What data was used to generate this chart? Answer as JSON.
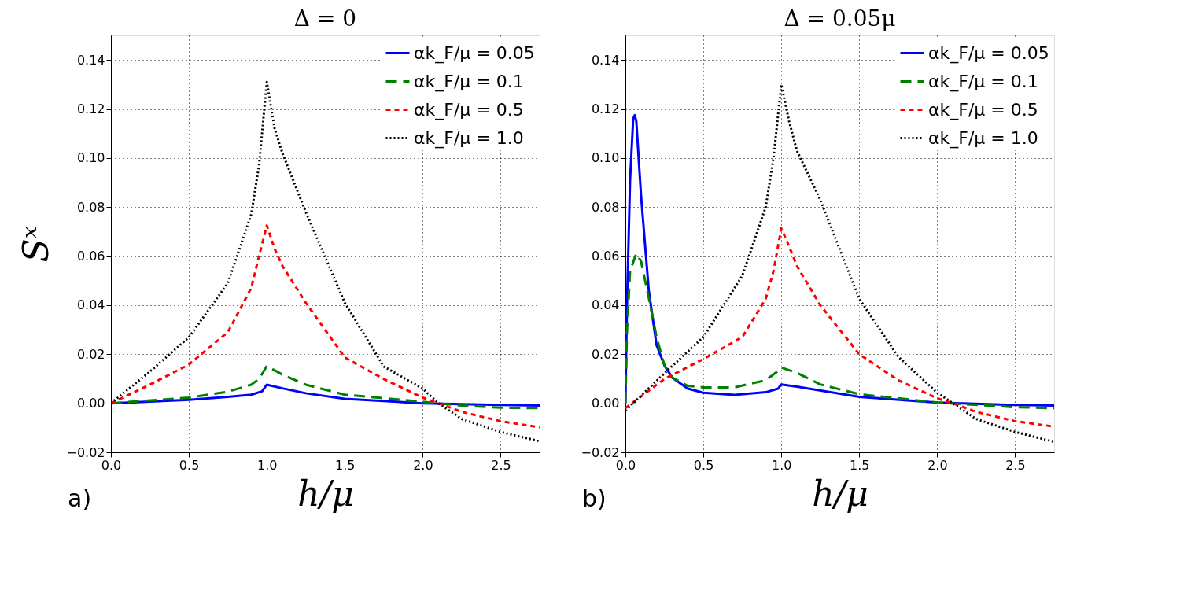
{
  "chart_data": [
    {
      "type": "line",
      "title": "Δ = 0",
      "xlabel": "h/μ",
      "ylabel": "Sˣ",
      "annotations": [
        "a)"
      ],
      "legend": "top right",
      "grid": true,
      "marker": "none",
      "xlim": [
        0,
        2.75
      ],
      "ylim": [
        -0.02,
        0.15
      ],
      "xticks": [
        {
          "value": 0,
          "label": "0.0"
        },
        {
          "value": 0.5,
          "label": "0.5"
        },
        {
          "value": 1,
          "label": "1.0"
        },
        {
          "value": 1.5,
          "label": "1.5"
        },
        {
          "value": 2,
          "label": "2.0"
        },
        {
          "value": 2.5,
          "label": "2.5"
        }
      ],
      "yticks": [
        {
          "value": -0.02,
          "label": "−0.02"
        },
        {
          "value": 0,
          "label": "0.00"
        },
        {
          "value": 0.02,
          "label": "0.02"
        },
        {
          "value": 0.04,
          "label": "0.04"
        },
        {
          "value": 0.06,
          "label": "0.06"
        },
        {
          "value": 0.08,
          "label": "0.08"
        },
        {
          "value": 0.1,
          "label": "0.10"
        },
        {
          "value": 0.12,
          "label": "0.12"
        },
        {
          "value": 0.14,
          "label": "0.14"
        }
      ],
      "series": [
        {
          "name": "αk_F/μ = 0.05",
          "color": "#0000ff",
          "line_style": "solid",
          "x": [
            0,
            0.5,
            0.75,
            0.9,
            0.97,
            1.0,
            1.1,
            1.25,
            1.5,
            2.0,
            2.5,
            2.75
          ],
          "values": [
            0,
            0.0014,
            0.0026,
            0.0035,
            0.0049,
            0.0076,
            0.0061,
            0.0041,
            0.0018,
            0,
            -0.0007,
            -0.0009
          ]
        },
        {
          "name": "αk_F/μ = 0.1",
          "color": "#008000",
          "line_style": "dashed",
          "x": [
            0,
            0.5,
            0.75,
            0.9,
            0.95,
            1.0,
            1.1,
            1.25,
            1.5,
            2.0,
            2.25,
            2.5,
            2.75
          ],
          "values": [
            0,
            0.0023,
            0.0047,
            0.0076,
            0.0099,
            0.0152,
            0.0117,
            0.0076,
            0.0035,
            0.0006,
            -0.0009,
            -0.0018,
            -0.002
          ]
        },
        {
          "name": "αk_F/μ = 0.5",
          "color": "#ff0000",
          "line_style": "dashed",
          "x": [
            0,
            0.25,
            0.5,
            0.75,
            0.9,
            0.95,
            1.0,
            1.05,
            1.1,
            1.25,
            1.5,
            1.75,
            2.0,
            2.1,
            2.25,
            2.5,
            2.75
          ],
          "values": [
            0,
            0.0076,
            0.0158,
            0.029,
            0.047,
            0.06,
            0.0725,
            0.063,
            0.056,
            0.041,
            0.0187,
            0.0099,
            0.0023,
            0,
            -0.0035,
            -0.0073,
            -0.0098
          ]
        },
        {
          "name": "αk_F/μ = 1.0",
          "color": "#000000",
          "line_style": "dotted",
          "x": [
            0,
            0.25,
            0.5,
            0.75,
            0.9,
            0.95,
            1.0,
            1.05,
            1.1,
            1.25,
            1.5,
            1.75,
            2.0,
            2.1,
            2.25,
            2.5,
            2.75
          ],
          "values": [
            0,
            0.0129,
            0.0269,
            0.049,
            0.077,
            0.097,
            0.131,
            0.112,
            0.102,
            0.078,
            0.041,
            0.015,
            0.006,
            0,
            -0.0064,
            -0.0117,
            -0.0155
          ]
        }
      ]
    },
    {
      "type": "line",
      "title": "Δ = 0.05μ",
      "xlabel": "h/μ",
      "annotations": [
        "b)"
      ],
      "legend": "top right",
      "grid": true,
      "marker": "none",
      "xlim": [
        0,
        2.75
      ],
      "ylim": [
        -0.02,
        0.15
      ],
      "xticks": [
        {
          "value": 0,
          "label": "0.0"
        },
        {
          "value": 0.5,
          "label": "0.5"
        },
        {
          "value": 1,
          "label": "1.0"
        },
        {
          "value": 1.5,
          "label": "1.5"
        },
        {
          "value": 2,
          "label": "2.0"
        },
        {
          "value": 2.5,
          "label": "2.5"
        }
      ],
      "yticks": [
        {
          "value": -0.02,
          "label": "−0.02"
        },
        {
          "value": 0,
          "label": "0.00"
        },
        {
          "value": 0.02,
          "label": "0.02"
        },
        {
          "value": 0.04,
          "label": "0.04"
        },
        {
          "value": 0.06,
          "label": "0.06"
        },
        {
          "value": 0.08,
          "label": "0.08"
        },
        {
          "value": 0.1,
          "label": "0.10"
        },
        {
          "value": 0.12,
          "label": "0.12"
        },
        {
          "value": 0.14,
          "label": "0.14"
        }
      ],
      "series": [
        {
          "name": "αk_F/μ = 0.05",
          "color": "#0000ff",
          "line_style": "solid",
          "x": [
            0,
            0.01,
            0.03,
            0.05,
            0.06,
            0.07,
            0.1,
            0.15,
            0.2,
            0.25,
            0.3,
            0.4,
            0.5,
            0.7,
            0.9,
            0.98,
            1.0,
            1.1,
            1.5,
            2.0,
            2.5,
            2.75
          ],
          "values": [
            0,
            0.04,
            0.091,
            0.116,
            0.1175,
            0.115,
            0.085,
            0.046,
            0.0236,
            0.0155,
            0.0105,
            0.006,
            0.0043,
            0.0034,
            0.0045,
            0.006,
            0.0077,
            0.0068,
            0.0026,
            0.0003,
            -0.0007,
            -0.0009
          ]
        },
        {
          "name": "αk_F/μ = 0.1",
          "color": "#008000",
          "line_style": "dashed",
          "x": [
            0,
            0.01,
            0.03,
            0.07,
            0.1,
            0.15,
            0.2,
            0.25,
            0.3,
            0.4,
            0.5,
            0.7,
            0.9,
            0.97,
            1.0,
            1.1,
            1.25,
            1.5,
            2.0,
            2.5,
            2.75
          ],
          "values": [
            0,
            0.029,
            0.054,
            0.061,
            0.058,
            0.043,
            0.027,
            0.0155,
            0.0105,
            0.0071,
            0.0065,
            0.0065,
            0.0094,
            0.0127,
            0.0146,
            0.0124,
            0.0077,
            0.0037,
            0.0003,
            -0.0016,
            -0.002
          ]
        },
        {
          "name": "αk_F/μ = 0.5",
          "color": "#ff0000",
          "line_style": "dashed",
          "x": [
            0,
            0.25,
            0.5,
            0.75,
            0.9,
            0.95,
            1.0,
            1.05,
            1.1,
            1.25,
            1.5,
            1.75,
            2.0,
            2.1,
            2.25,
            2.5,
            2.75
          ],
          "values": [
            -0.002,
            0.0099,
            0.018,
            0.027,
            0.0426,
            0.054,
            0.0713,
            0.064,
            0.056,
            0.04,
            0.02,
            0.0094,
            0.002,
            0,
            -0.0035,
            -0.0073,
            -0.0095
          ]
        },
        {
          "name": "αk_F/μ = 1.0",
          "color": "#000000",
          "line_style": "dotted",
          "x": [
            0,
            0.25,
            0.5,
            0.75,
            0.9,
            0.95,
            1.0,
            1.05,
            1.1,
            1.25,
            1.5,
            1.75,
            2.0,
            2.1,
            2.25,
            2.5,
            2.75
          ],
          "values": [
            -0.003,
            0.0122,
            0.027,
            0.052,
            0.08,
            0.1,
            0.13,
            0.115,
            0.103,
            0.083,
            0.0426,
            0.019,
            0.0043,
            0,
            -0.0064,
            -0.0117,
            -0.0157
          ]
        }
      ]
    }
  ]
}
